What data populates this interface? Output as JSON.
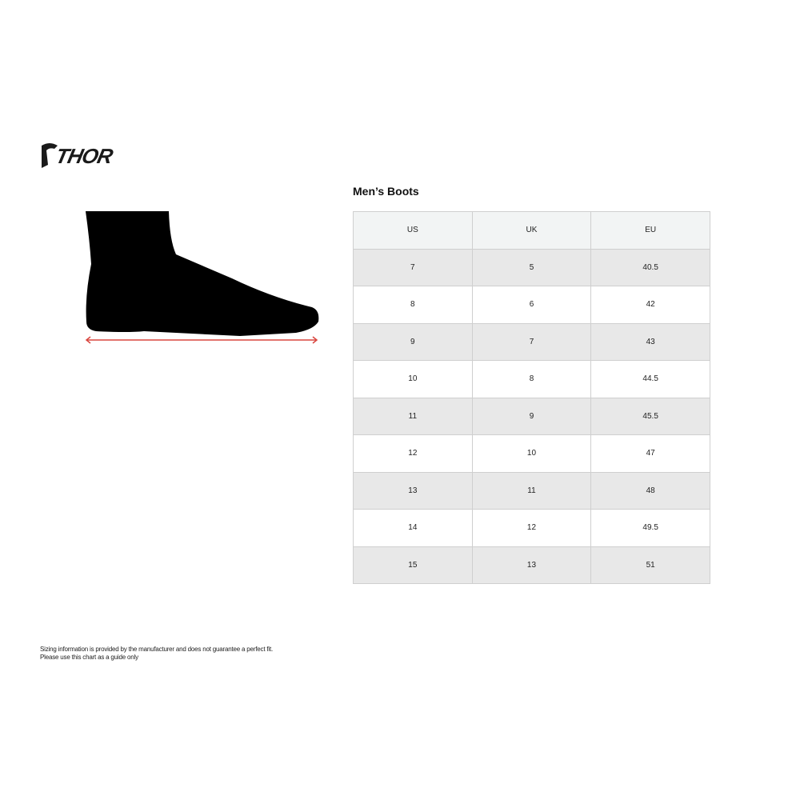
{
  "brand": {
    "logo_text": "THOR"
  },
  "chart_title": "Men’s Boots",
  "table": {
    "headers": [
      "US",
      "UK",
      "EU"
    ],
    "rows": [
      [
        "7",
        "5",
        "40.5"
      ],
      [
        "8",
        "6",
        "42"
      ],
      [
        "9",
        "7",
        "43"
      ],
      [
        "10",
        "8",
        "44.5"
      ],
      [
        "11",
        "9",
        "45.5"
      ],
      [
        "12",
        "10",
        "47"
      ],
      [
        "13",
        "11",
        "48"
      ],
      [
        "14",
        "12",
        "49.5"
      ],
      [
        "15",
        "13",
        "51"
      ]
    ]
  },
  "disclaimer": {
    "line1": "Sizing information is provided by the manufacturer and does not guarantee a perfect fit.",
    "line2": "Please use this chart as a guide only"
  },
  "colors": {
    "measure_arrow": "#d9463f",
    "row_shaded": "#e8e8e8",
    "header_bg": "#f2f4f4"
  }
}
